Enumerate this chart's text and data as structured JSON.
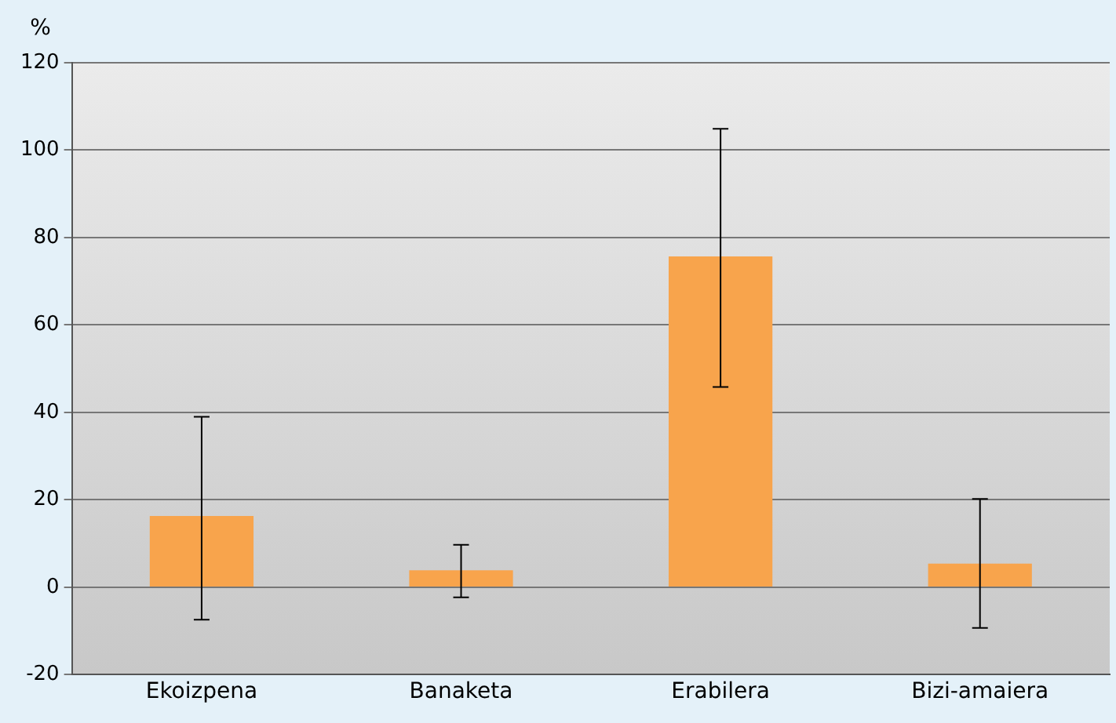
{
  "chart_data": {
    "type": "bar",
    "ylabel": "%",
    "categories": [
      "Ekoizpena",
      "Banaketa",
      "Erabilera",
      "Bizi-amaiera"
    ],
    "values": [
      16.3,
      3.9,
      75.7,
      5.4
    ],
    "errors": [
      [
        -7.4,
        39
      ],
      [
        -2.3,
        9.7
      ],
      [
        45.8,
        104.9
      ],
      [
        -9.3,
        20.2
      ]
    ],
    "color": "#f8a44c",
    "ylim": [
      -20,
      120
    ],
    "yticks": [
      -20,
      0,
      20,
      40,
      60,
      80,
      100,
      120
    ],
    "grid": "y",
    "legend": false
  }
}
